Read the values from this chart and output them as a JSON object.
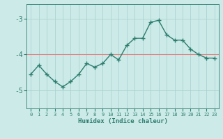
{
  "x": [
    0,
    1,
    2,
    3,
    4,
    5,
    6,
    7,
    8,
    9,
    10,
    11,
    12,
    13,
    14,
    15,
    16,
    17,
    18,
    19,
    20,
    21,
    22,
    23
  ],
  "y": [
    -4.55,
    -4.3,
    -4.55,
    -4.75,
    -4.9,
    -4.75,
    -4.55,
    -4.25,
    -4.35,
    -4.25,
    -4.0,
    -4.15,
    -3.75,
    -3.55,
    -3.55,
    -3.1,
    -3.05,
    -3.45,
    -3.6,
    -3.6,
    -3.85,
    -4.0,
    -4.1,
    -4.1
  ],
  "line_color": "#2d7d6e",
  "marker": "+",
  "marker_size": 4,
  "bg_color": "#cceae8",
  "grid_color": "#aad4d0",
  "tick_color": "#2d7d6e",
  "xlabel": "Humidex (Indice chaleur)",
  "xlabel_color": "#2d7d6e",
  "yticks": [
    -5,
    -4,
    -3
  ],
  "ylim": [
    -5.5,
    -2.6
  ],
  "xlim": [
    -0.5,
    23.5
  ],
  "hline_y": -4.0,
  "hline_color": "#e08080"
}
